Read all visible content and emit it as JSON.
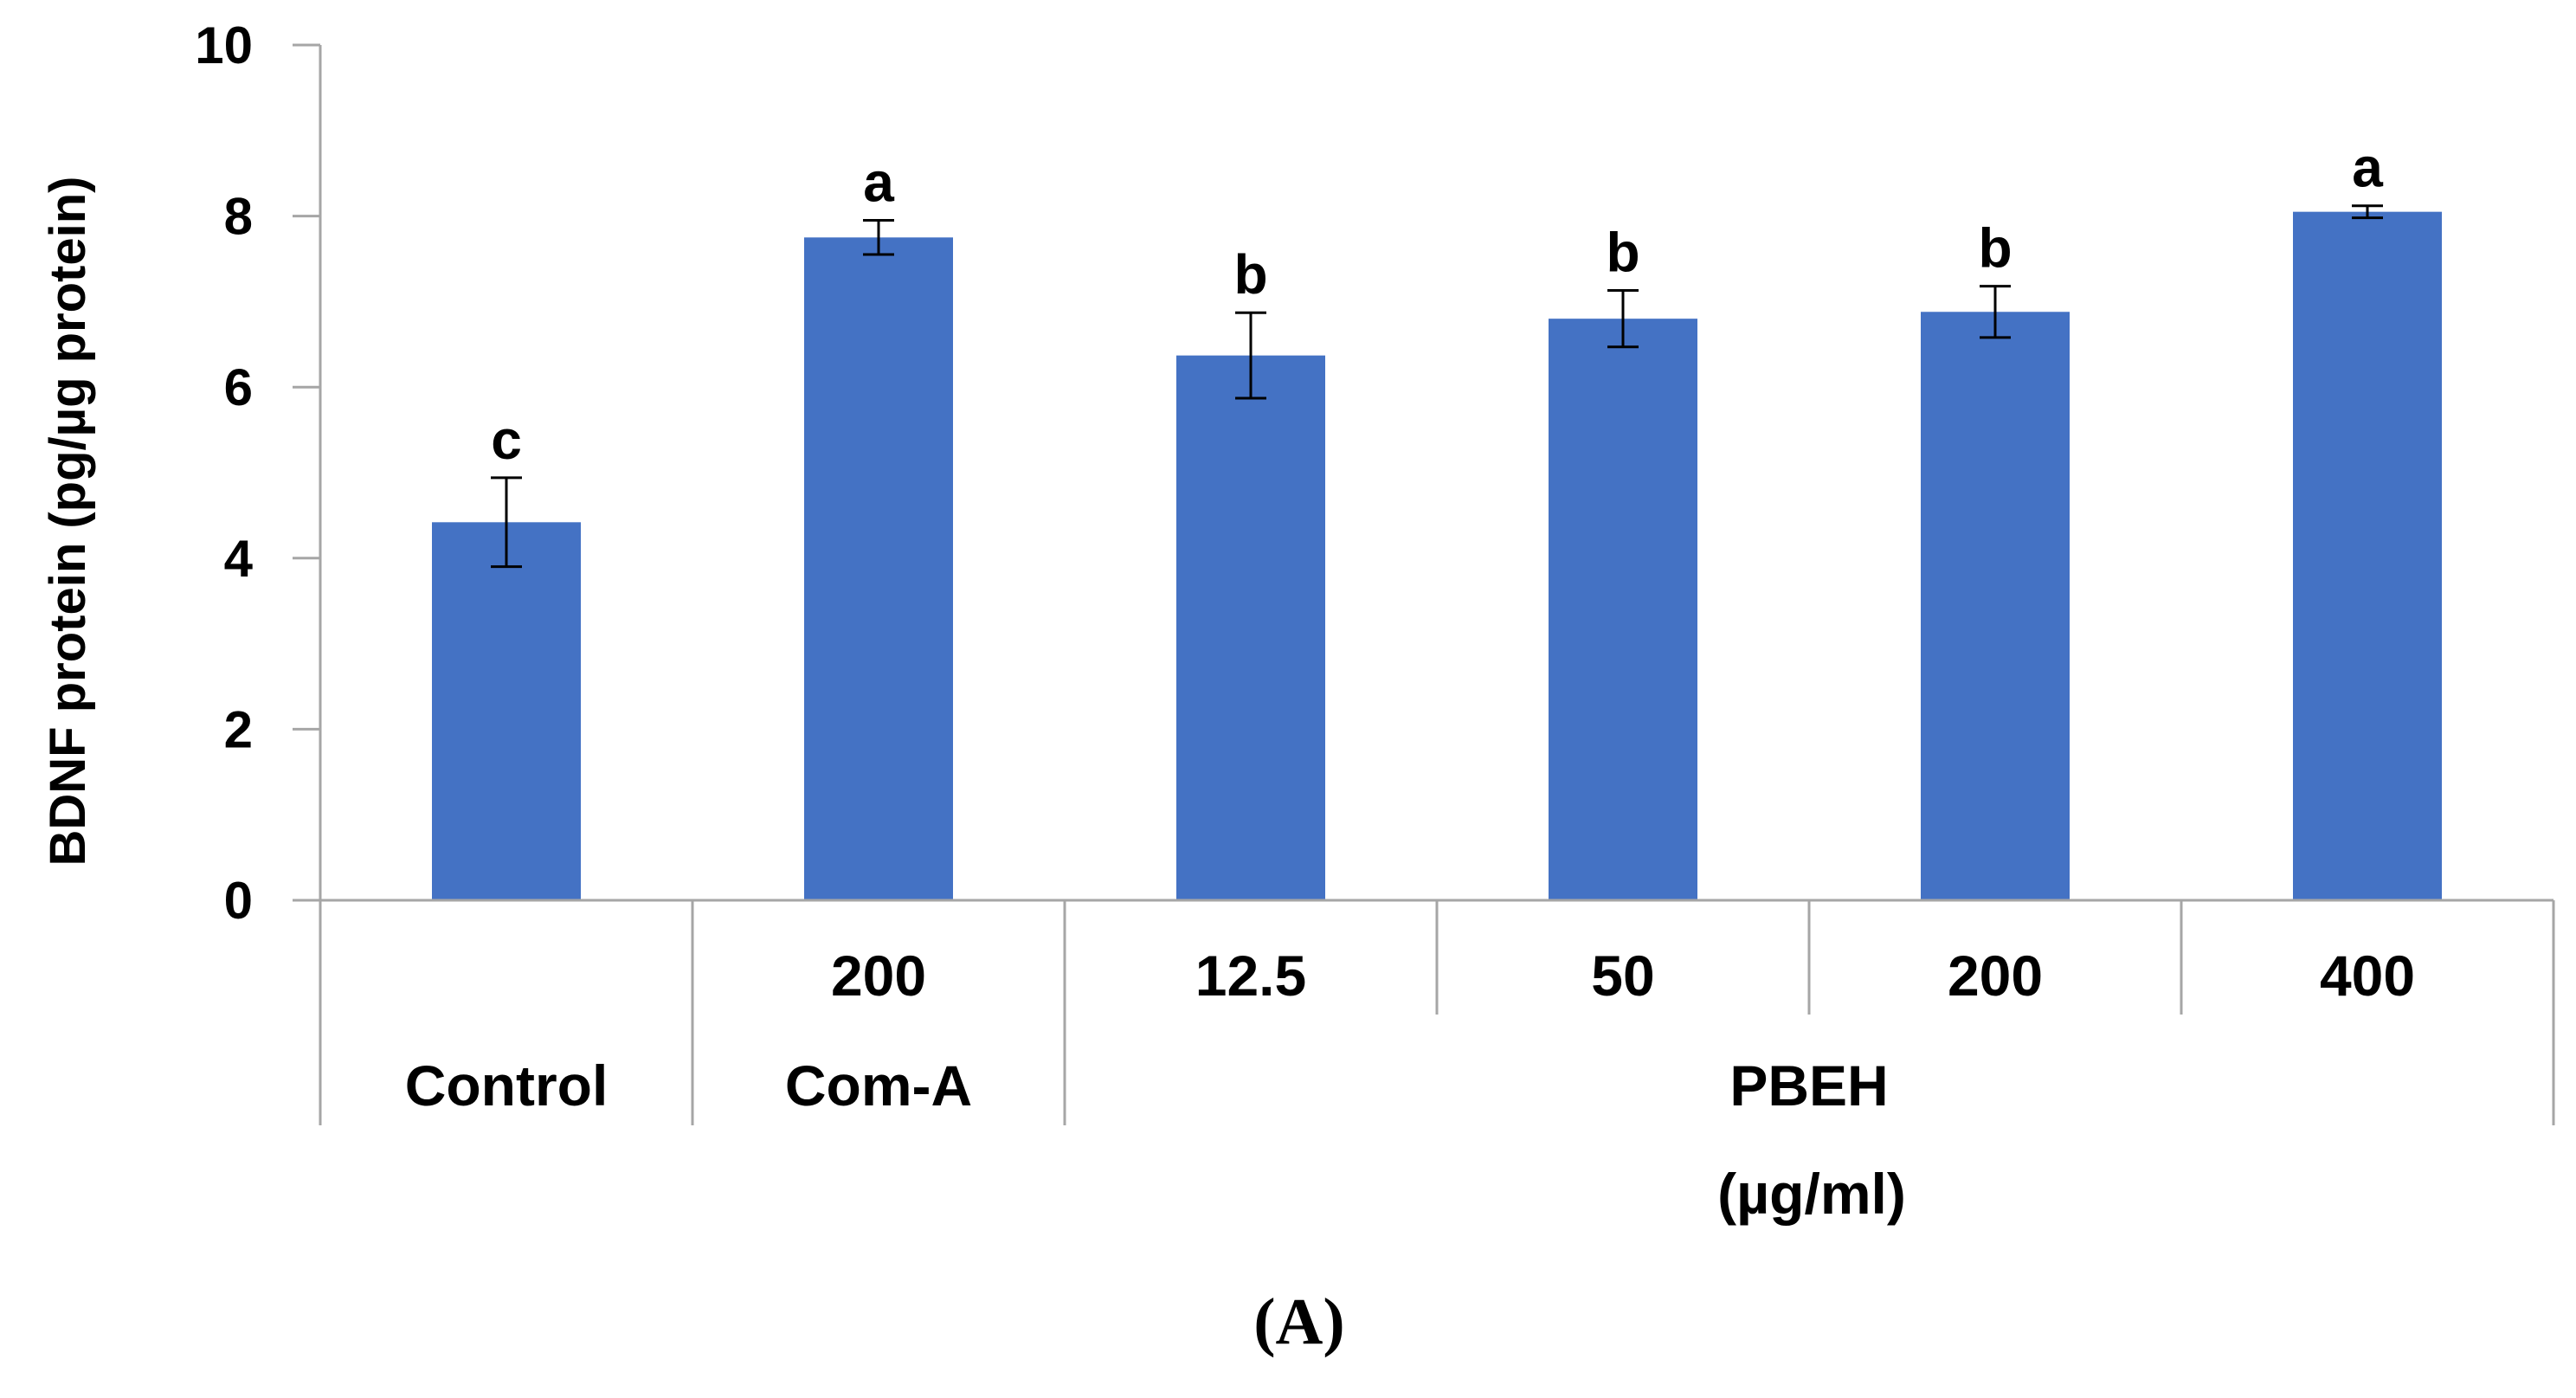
{
  "chart_data": {
    "type": "bar",
    "title": "",
    "ylabel": "BDNF protein (pg/µg protein)",
    "xlabel": "",
    "ylim": [
      0,
      10
    ],
    "yticks": [
      "0",
      "2",
      "4",
      "6",
      "8",
      "10"
    ],
    "bar_color": "#4472c4",
    "categories": [
      "Control",
      "200",
      "12.5",
      "50",
      "200",
      "400"
    ],
    "values": [
      4.42,
      7.75,
      6.37,
      6.8,
      6.88,
      8.05
    ],
    "errors": [
      0.52,
      0.2,
      0.5,
      0.33,
      0.3,
      0.07
    ],
    "significance": [
      "c",
      "a",
      "b",
      "b",
      "b",
      "a"
    ],
    "dose_labels": [
      "",
      "200",
      "12.5",
      "50",
      "200",
      "400"
    ],
    "group_labels": [
      {
        "text": "Control",
        "span": [
          0,
          0
        ]
      },
      {
        "text": "Com-A",
        "span": [
          1,
          1
        ]
      },
      {
        "text": "PBEH",
        "span": [
          2,
          5
        ]
      }
    ],
    "unit_label": "(µg/ml)",
    "grid": false
  },
  "panel_label": "(A)"
}
